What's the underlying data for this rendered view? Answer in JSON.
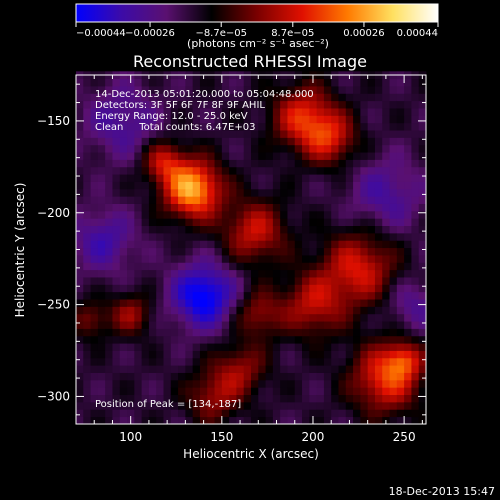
{
  "chart_data": {
    "type": "heatmap",
    "title": "Reconstructed RHESSI Image",
    "xlabel": "Heliocentric X (arcsec)",
    "ylabel": "Heliocentric Y (arcsec)",
    "xlim": [
      70,
      262
    ],
    "ylim": [
      -315,
      -125
    ],
    "x_ticks": [
      100,
      150,
      200,
      250
    ],
    "y_ticks": [
      -150,
      -200,
      -250,
      -300
    ],
    "colorbar": {
      "range": [
        -0.00044,
        0.00044
      ],
      "tick_values": [
        -0.00044,
        -0.00026,
        -8.7e-05,
        8.7e-05,
        0.00026,
        0.00044
      ],
      "tick_labels": [
        "−0.00044",
        "−0.00026",
        "−8.7e−05",
        "8.7e−05",
        "0.00026",
        "0.00044"
      ],
      "label": "(photons cm⁻² s⁻¹ asec⁻²)",
      "colormap": [
        "#0000ff",
        "#3c0ba8",
        "#5a1070",
        "#000000",
        "#7a0000",
        "#e01000",
        "#ff7a00",
        "#ffe060",
        "#ffffff"
      ]
    },
    "annotations": [
      "14-Dec-2013 05:01:20.000 to 05:04:48.000",
      "Detectors: 3F 5F 6F 7F 8F 9F AHIL",
      "Energy Range: 12.0 - 25.0 keV",
      "Clean     Total counts: 6.47E+03"
    ],
    "peak_label": "Position of Peak = [134,-187]",
    "peak": [
      134,
      -187
    ],
    "sources": [
      {
        "x": 134,
        "y": -187,
        "sigma": 11,
        "value": 0.00044
      },
      {
        "x": 118,
        "y": -172,
        "sigma": 8,
        "value": 0.00022
      },
      {
        "x": 195,
        "y": -148,
        "sigma": 12,
        "value": 0.00028
      },
      {
        "x": 210,
        "y": -160,
        "sigma": 10,
        "value": 0.00022
      },
      {
        "x": 168,
        "y": -210,
        "sigma": 12,
        "value": 0.00024
      },
      {
        "x": 225,
        "y": -230,
        "sigma": 14,
        "value": 0.00026
      },
      {
        "x": 200,
        "y": -250,
        "sigma": 12,
        "value": 0.00022
      },
      {
        "x": 170,
        "y": -255,
        "sigma": 9,
        "value": 0.00018
      },
      {
        "x": 100,
        "y": -255,
        "sigma": 8,
        "value": 0.00018
      },
      {
        "x": 78,
        "y": -258,
        "sigma": 7,
        "value": 0.00015
      },
      {
        "x": 160,
        "y": -285,
        "sigma": 10,
        "value": 0.00018
      },
      {
        "x": 145,
        "y": -300,
        "sigma": 10,
        "value": 0.00018
      },
      {
        "x": 240,
        "y": -290,
        "sigma": 13,
        "value": 0.0003
      },
      {
        "x": 250,
        "y": -280,
        "sigma": 7,
        "value": 0.0002
      },
      {
        "x": 140,
        "y": -245,
        "sigma": 12,
        "value": -0.0003
      },
      {
        "x": 85,
        "y": -215,
        "sigma": 12,
        "value": -0.00016
      },
      {
        "x": 95,
        "y": -150,
        "sigma": 14,
        "value": -0.00014
      },
      {
        "x": 240,
        "y": -190,
        "sigma": 14,
        "value": -0.00014
      },
      {
        "x": 255,
        "y": -250,
        "sigma": 10,
        "value": -0.00012
      }
    ]
  },
  "footer": {
    "timestamp": "18-Dec-2013 15:47"
  }
}
